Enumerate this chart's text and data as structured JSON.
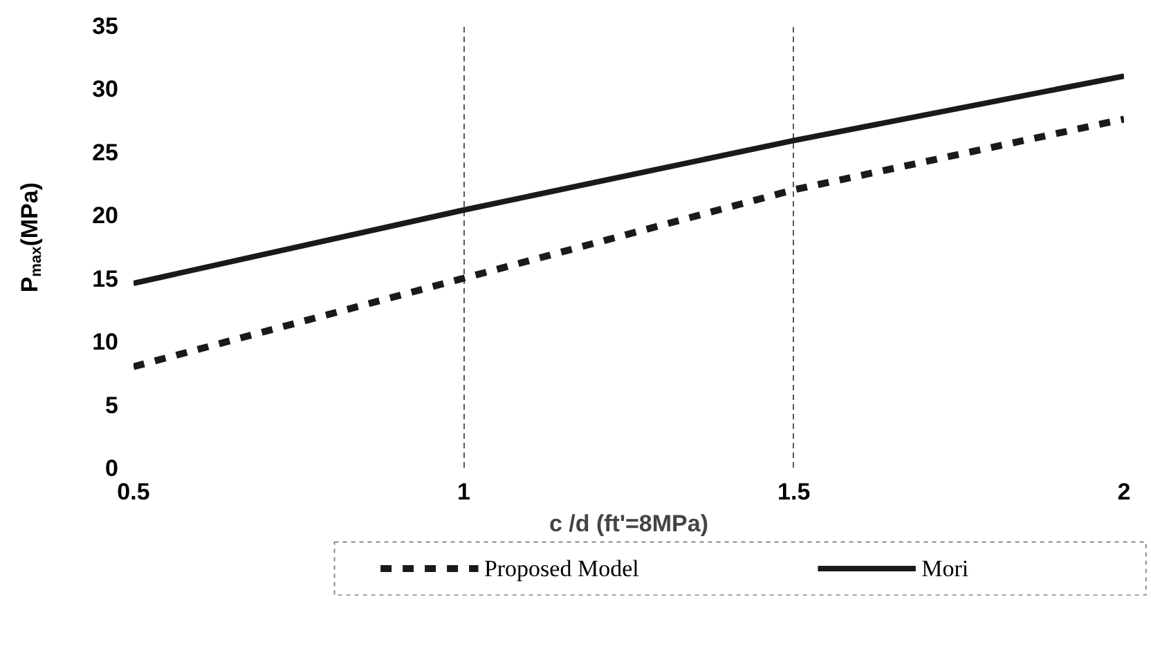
{
  "chart_data": {
    "type": "line",
    "xlabel": "c /d (ft'=8MPa)",
    "ylabel": "P$_{max}$(MPa)",
    "x": [
      0.5,
      1,
      1.5,
      2
    ],
    "xlim": [
      0.5,
      2
    ],
    "xticks": [
      0.5,
      1,
      1.5,
      2
    ],
    "ylim": [
      0,
      35
    ],
    "yticks": [
      0,
      5,
      10,
      15,
      20,
      25,
      30,
      35
    ],
    "grid": "x",
    "legend": "bottom",
    "marker": "none",
    "series": [
      {
        "name": "Proposed Model",
        "color": "#1a1a1a",
        "line_style": "dashed",
        "values": [
          8.0,
          15.0,
          22.0,
          27.6
        ]
      },
      {
        "name": "Mori",
        "color": "#1a1a1a",
        "line_style": "solid",
        "values": [
          14.6,
          20.4,
          25.9,
          31.0
        ]
      }
    ]
  }
}
